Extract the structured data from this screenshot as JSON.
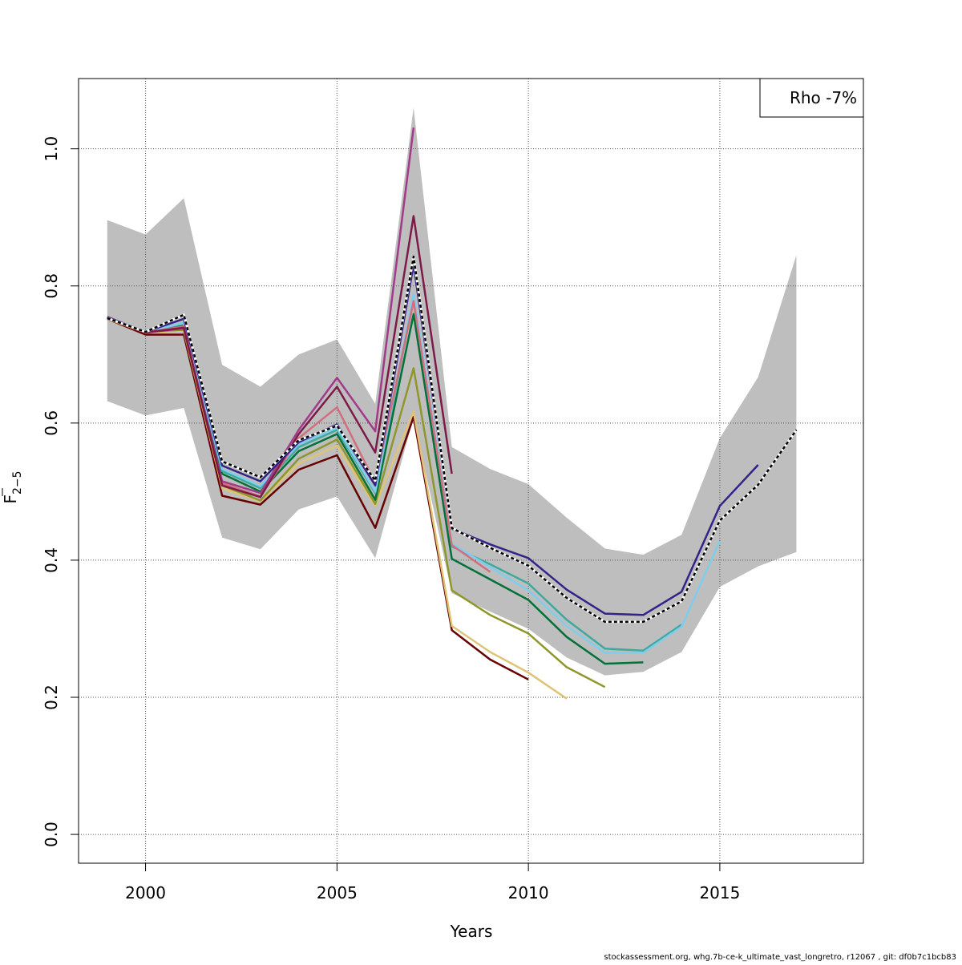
{
  "chart_data": {
    "type": "line",
    "title": "",
    "xlabel": "Years",
    "ylabel": "F̅2−5",
    "ylabel_main": "F",
    "ylabel_sub": "2−5",
    "xlim": [
      1998.25,
      2018.75
    ],
    "ylim": [
      -0.042,
      1.1025
    ],
    "x_ticks": [
      2000,
      2005,
      2010,
      2015
    ],
    "y_ticks": [
      0.0,
      0.2,
      0.4,
      0.6,
      0.8,
      1.0
    ],
    "x_tick_labels": [
      "2000",
      "2005",
      "2010",
      "2015"
    ],
    "y_tick_labels": [
      "0.0",
      "0.2",
      "0.4",
      "0.6",
      "0.8",
      "1.0"
    ],
    "grid": true,
    "legend": {
      "position": "top-right",
      "text": "Rho -7%"
    },
    "footer": "stockassessment.org, whg.7b-ce-k_ultimate_vast_longretro, r12067 , git: df0b7c1bcb83",
    "confidence_band": {
      "color": "#bebebe",
      "x": [
        1999,
        2000,
        2001,
        2002,
        2003,
        2004,
        2005,
        2006,
        2007,
        2008,
        2009,
        2010,
        2011,
        2012,
        2013,
        2014,
        2015,
        2016,
        2017
      ],
      "upper": [
        0.896,
        0.875,
        0.928,
        0.685,
        0.653,
        0.7,
        0.722,
        0.628,
        1.06,
        0.565,
        0.533,
        0.511,
        0.462,
        0.417,
        0.408,
        0.437,
        0.578,
        0.667,
        0.845
      ],
      "lower": [
        0.632,
        0.611,
        0.622,
        0.433,
        0.416,
        0.474,
        0.493,
        0.403,
        0.608,
        0.352,
        0.325,
        0.3,
        0.258,
        0.232,
        0.237,
        0.266,
        0.361,
        0.391,
        0.412
      ]
    },
    "series": [
      {
        "color": "#690000",
        "x": [
          1999,
          2000,
          2001,
          2002,
          2003,
          2004,
          2005,
          2006,
          2007,
          2008,
          2009,
          2010
        ],
        "values": [
          0.752,
          0.729,
          0.729,
          0.494,
          0.481,
          0.532,
          0.553,
          0.447,
          0.609,
          0.298,
          0.255,
          0.226
        ]
      },
      {
        "color": "#dec474",
        "x": [
          1999,
          2000,
          2001,
          2002,
          2003,
          2004,
          2005,
          2006,
          2007,
          2008,
          2009,
          2010,
          2011
        ],
        "values": [
          0.752,
          0.732,
          0.735,
          0.505,
          0.486,
          0.541,
          0.567,
          0.479,
          0.617,
          0.304,
          0.266,
          0.236,
          0.198
        ]
      },
      {
        "color": "#8f962b",
        "x": [
          1999,
          2000,
          2001,
          2002,
          2003,
          2004,
          2005,
          2006,
          2007,
          2008,
          2009,
          2010,
          2011,
          2012
        ],
        "values": [
          0.752,
          0.733,
          0.736,
          0.509,
          0.487,
          0.548,
          0.576,
          0.482,
          0.68,
          0.356,
          0.32,
          0.293,
          0.244,
          0.215
        ]
      },
      {
        "color": "#007139",
        "x": [
          1999,
          2000,
          2001,
          2002,
          2003,
          2004,
          2005,
          2006,
          2007,
          2008,
          2009,
          2010,
          2011,
          2012,
          2013
        ],
        "values": [
          0.753,
          0.733,
          0.742,
          0.526,
          0.5,
          0.559,
          0.584,
          0.488,
          0.759,
          0.402,
          0.372,
          0.342,
          0.288,
          0.249,
          0.251
        ]
      },
      {
        "color": "#3fa99e",
        "x": [
          1999,
          2000,
          2001,
          2002,
          2003,
          2004,
          2005,
          2006,
          2007,
          2008,
          2009,
          2010,
          2011,
          2012,
          2013,
          2014
        ],
        "values": [
          0.753,
          0.733,
          0.745,
          0.53,
          0.505,
          0.565,
          0.59,
          0.498,
          0.782,
          0.42,
          0.394,
          0.366,
          0.313,
          0.271,
          0.268,
          0.306
        ]
      },
      {
        "color": "#7ecded",
        "x": [
          1999,
          2000,
          2001,
          2002,
          2003,
          2004,
          2005,
          2006,
          2007,
          2008,
          2009,
          2010,
          2011,
          2012,
          2013,
          2014,
          2015
        ],
        "values": [
          0.753,
          0.733,
          0.746,
          0.533,
          0.508,
          0.569,
          0.593,
          0.5,
          0.788,
          0.424,
          0.39,
          0.356,
          0.304,
          0.265,
          0.265,
          0.303,
          0.428
        ]
      },
      {
        "color": "#d26e7e",
        "x": [
          1999,
          2000,
          2001,
          2002,
          2003,
          2004,
          2005,
          2006,
          2007,
          2008,
          2009
        ],
        "values": [
          0.753,
          0.732,
          0.741,
          0.512,
          0.493,
          0.578,
          0.623,
          0.513,
          0.778,
          0.422,
          0.383
        ]
      },
      {
        "color": "#a23a8a",
        "x": [
          1999,
          2000,
          2001,
          2002,
          2003,
          2004,
          2005,
          2006,
          2007
        ],
        "values": [
          0.755,
          0.732,
          0.738,
          0.515,
          0.498,
          0.59,
          0.666,
          0.588,
          1.031
        ]
      },
      {
        "color": "#7e1a48",
        "x": [
          1999,
          2000,
          2001,
          2002,
          2003,
          2004,
          2005,
          2006,
          2007,
          2008
        ],
        "values": [
          0.754,
          0.732,
          0.739,
          0.509,
          0.492,
          0.584,
          0.653,
          0.557,
          0.902,
          0.526
        ]
      },
      {
        "color": "#332288",
        "x": [
          1999,
          2000,
          2001,
          2002,
          2003,
          2004,
          2005,
          2006,
          2007,
          2008,
          2009,
          2010,
          2011,
          2012,
          2013,
          2014,
          2015,
          2016
        ],
        "values": [
          0.754,
          0.733,
          0.752,
          0.538,
          0.515,
          0.572,
          0.598,
          0.509,
          0.831,
          0.446,
          0.423,
          0.403,
          0.357,
          0.322,
          0.32,
          0.354,
          0.479,
          0.539
        ]
      },
      {
        "color": "#000000",
        "dashed": true,
        "x": [
          1999,
          2000,
          2001,
          2002,
          2003,
          2004,
          2005,
          2006,
          2007,
          2008,
          2009,
          2010,
          2011,
          2012,
          2013,
          2014,
          2015,
          2016,
          2017
        ],
        "values": [
          0.753,
          0.733,
          0.758,
          0.544,
          0.521,
          0.575,
          0.596,
          0.516,
          0.843,
          0.447,
          0.418,
          0.392,
          0.345,
          0.31,
          0.31,
          0.34,
          0.458,
          0.51,
          0.59
        ]
      }
    ]
  }
}
